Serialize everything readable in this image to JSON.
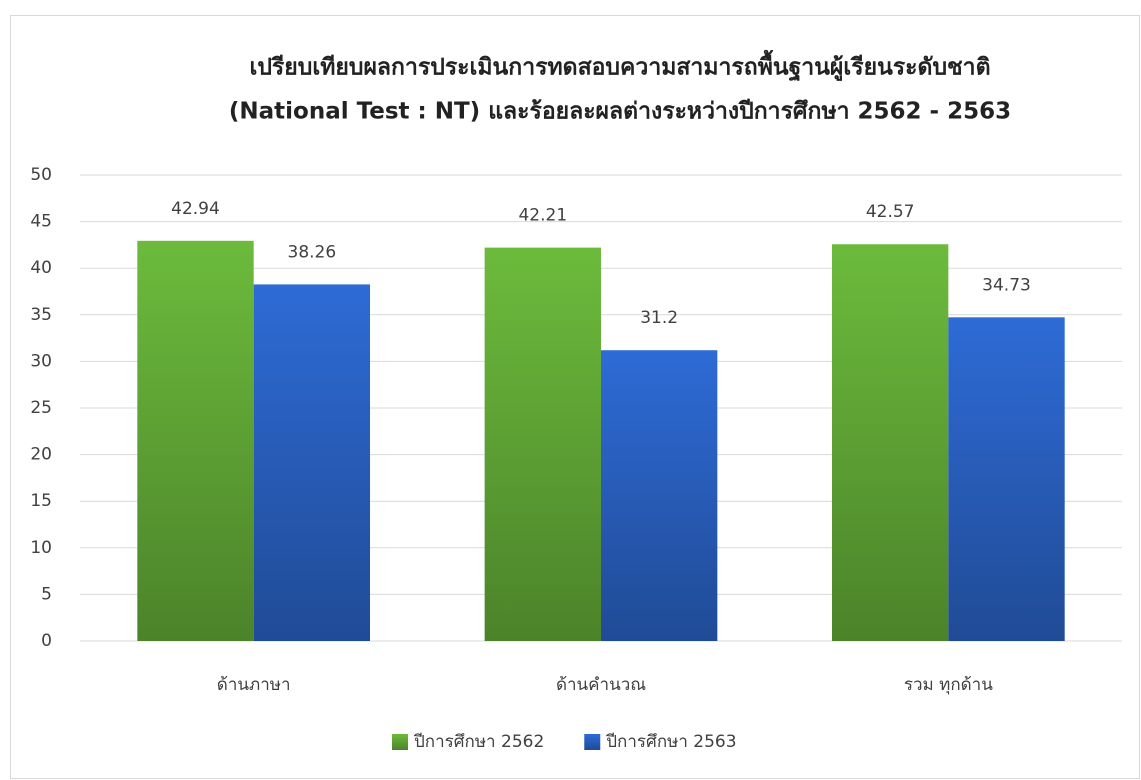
{
  "chart_data": {
    "type": "bar",
    "title": [
      "เปรียบเทียบผลการประเมินการทดสอบความสามารถพื้นฐานผู้เรียนระดับชาติ",
      "(National Test : NT) และร้อยละผลต่างระหว่างปีการศึกษา 2562 - 2563"
    ],
    "categories": [
      "ด้านภาษา",
      "ด้านคำนวณ",
      "รวม ทุกด้าน"
    ],
    "series": [
      {
        "name": "ปีการศึกษา 2562",
        "color": "#6cbb3c",
        "values": [
          42.94,
          42.21,
          42.57
        ]
      },
      {
        "name": "ปีการศึกษา 2563",
        "color": "#2e6bd6",
        "values": [
          38.26,
          31.2,
          34.73
        ]
      }
    ],
    "ylim": [
      0,
      50
    ],
    "yticks": [
      0,
      5,
      10,
      15,
      20,
      25,
      30,
      35,
      40,
      45,
      50
    ],
    "grid": true,
    "legend": "bottom"
  }
}
